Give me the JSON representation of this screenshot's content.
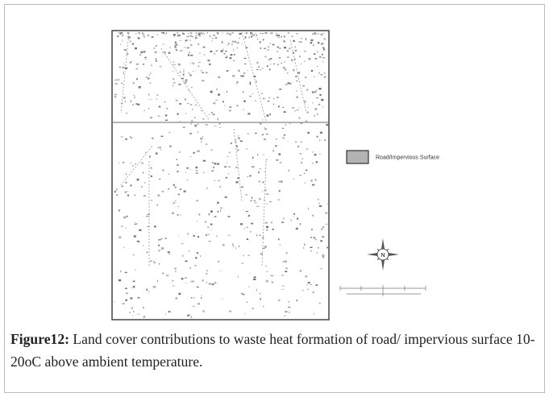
{
  "figure": {
    "legend": {
      "label": "Road/Impervious Surface"
    },
    "north_arrow": {
      "label": "N"
    },
    "caption": {
      "label": "Figure12:",
      "text": "Land cover contributions to waste heat formation of road/ impervious surface 10-20oC above ambient temperature."
    }
  }
}
